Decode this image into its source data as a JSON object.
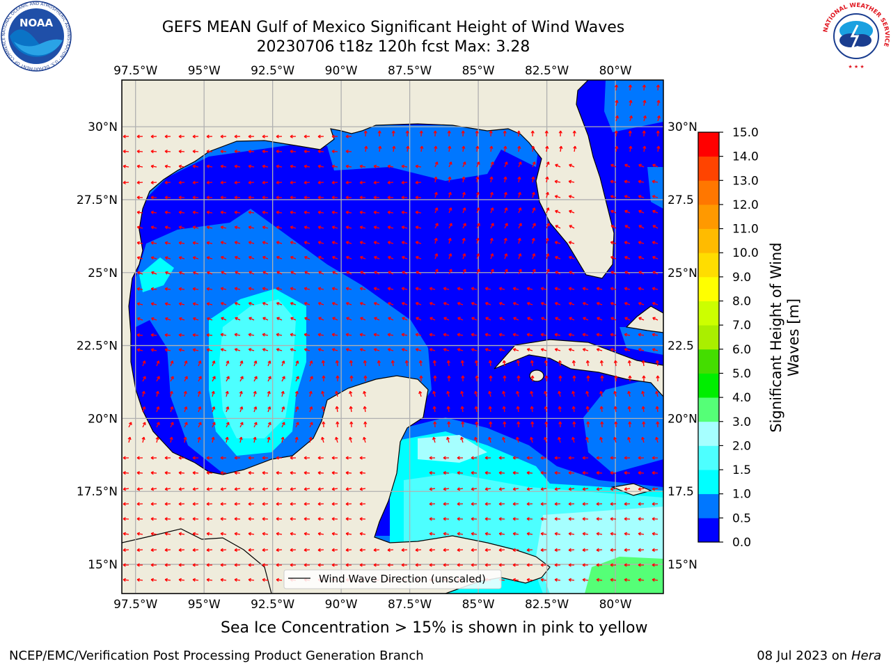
{
  "header": {
    "title_line1": "GEFS MEAN Gulf of Mexico Significant Height of Wind Waves",
    "title_line2": "20230706 t18z 120h fcst   Max: 3.28"
  },
  "map": {
    "lon_labels": [
      "97.5°W",
      "95°W",
      "92.5°W",
      "90°W",
      "87.5°W",
      "85°W",
      "82.5°W",
      "80°W"
    ],
    "lat_labels_left": [
      "30°N",
      "27.5°N",
      "25°N",
      "22.5°N",
      "20°N",
      "17.5°N",
      "15°N"
    ],
    "lat_labels_right": [
      "30°N",
      "27.5",
      "25°N",
      "22.5",
      "20°N",
      "17.5",
      "15°N"
    ],
    "lon_values": [
      -97.5,
      -95,
      -92.5,
      -90,
      -87.5,
      -85,
      -82.5,
      -80
    ],
    "lat_values": [
      30,
      27.5,
      25,
      22.5,
      20,
      17.5,
      15
    ],
    "extent": {
      "lon_min": -98,
      "lon_max": -78.25,
      "lat_min": 14,
      "lat_max": 31.6
    },
    "legend_label": "Wind Wave Direction (unscaled)",
    "land_color": "#efecdc",
    "arrow_color": "#ff0000"
  },
  "colorbar": {
    "ticks": [
      "0.0",
      "0.5",
      "1.0",
      "1.5",
      "2.0",
      "3.0",
      "4.0",
      "5.0",
      "6.0",
      "7.0",
      "8.0",
      "9.0",
      "10.0",
      "11.0",
      "12.0",
      "13.0",
      "14.0",
      "15.0"
    ],
    "colors": [
      "#0000ff",
      "#0077ff",
      "#00ffff",
      "#4dffff",
      "#a6ffff",
      "#55ff77",
      "#00ee00",
      "#44dd00",
      "#aaee00",
      "#ccff00",
      "#ffff00",
      "#ffdd00",
      "#ffbb00",
      "#ff9900",
      "#ff7700",
      "#ff4400",
      "#ff0000"
    ],
    "label": "Significant Height of Wind Waves [m]"
  },
  "notes": {
    "ice": "Sea Ice Concentration > 15% is shown in pink to yellow"
  },
  "footer": {
    "left": "NCEP/EMC/Verification Post Processing Product Generation Branch",
    "date": "08 Jul 2023 on ",
    "machine": "Hera"
  },
  "logos": {
    "noaa_text": "NOAA",
    "noaa_ring": "NATIONAL OCEANIC AND ATMOSPHERIC ADMINISTRATION · U.S. DEPARTMENT OF COMMERCE",
    "nws_ring": "NATIONAL WEATHER SERVICE"
  }
}
